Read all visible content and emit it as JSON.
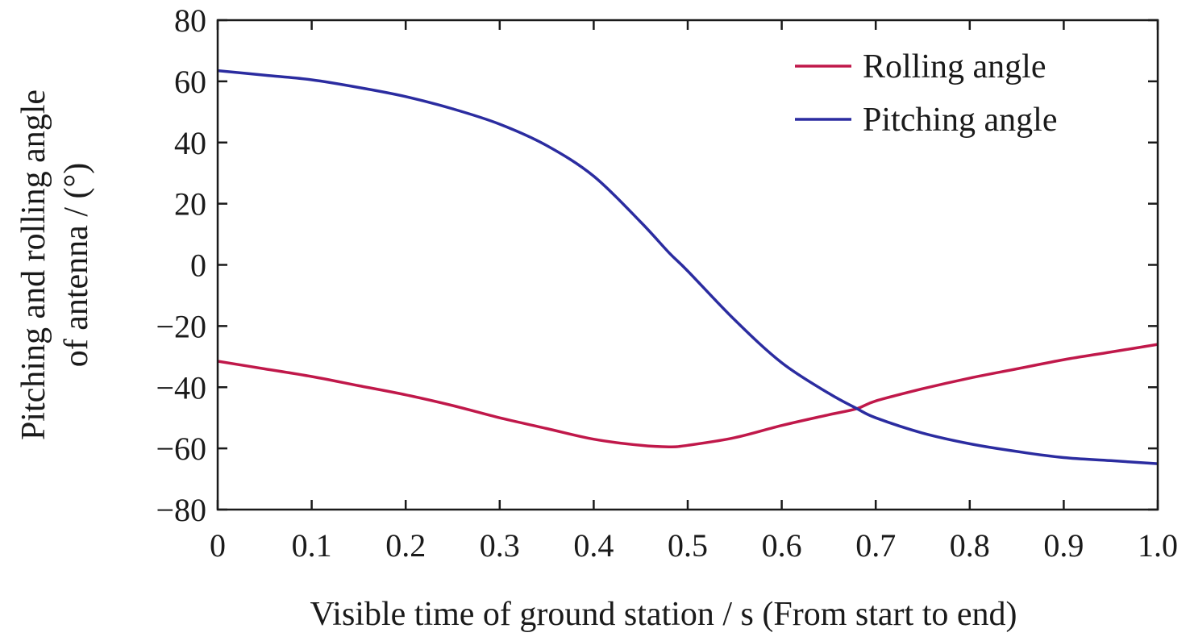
{
  "chart_data": {
    "type": "line",
    "xlabel": "Visible time of ground station / s (From start to end)",
    "ylabel": [
      "Pitching and rolling angle",
      "of antenna / (°)"
    ],
    "xlim": [
      0,
      1
    ],
    "ylim": [
      -80,
      80
    ],
    "x_ticks": [
      "0",
      "0.1",
      "0.2",
      "0.3",
      "0.4",
      "0.5",
      "0.6",
      "0.7",
      "0.8",
      "0.9",
      "1.0"
    ],
    "y_ticks": [
      "80",
      "60",
      "40",
      "20",
      "0",
      "−20",
      "−40",
      "−60",
      "−80"
    ],
    "grid": false,
    "legend_position": "top-right",
    "x": [
      0,
      0.05,
      0.1,
      0.15,
      0.2,
      0.25,
      0.3,
      0.35,
      0.4,
      0.45,
      0.48,
      0.5,
      0.55,
      0.6,
      0.65,
      0.68,
      0.7,
      0.75,
      0.8,
      0.85,
      0.9,
      0.95,
      1.0
    ],
    "series": [
      {
        "name": "Rolling angle",
        "color": "#c0184a",
        "values": [
          -31.5,
          -34,
          -36.5,
          -39.5,
          -42.5,
          -46,
          -50,
          -53.5,
          -57,
          -59,
          -59.5,
          -59,
          -56.5,
          -52.5,
          -49,
          -47,
          -44.5,
          -40.5,
          -37,
          -34,
          -31,
          -28.5,
          -26
        ]
      },
      {
        "name": "Pitching angle",
        "color": "#2b2ca0",
        "values": [
          63.5,
          62,
          60.5,
          58,
          55,
          51,
          46,
          39,
          29,
          14,
          4,
          -2,
          -18,
          -32,
          -42,
          -47,
          -50,
          -55,
          -58.5,
          -61,
          -63,
          -64,
          -65
        ]
      }
    ]
  }
}
